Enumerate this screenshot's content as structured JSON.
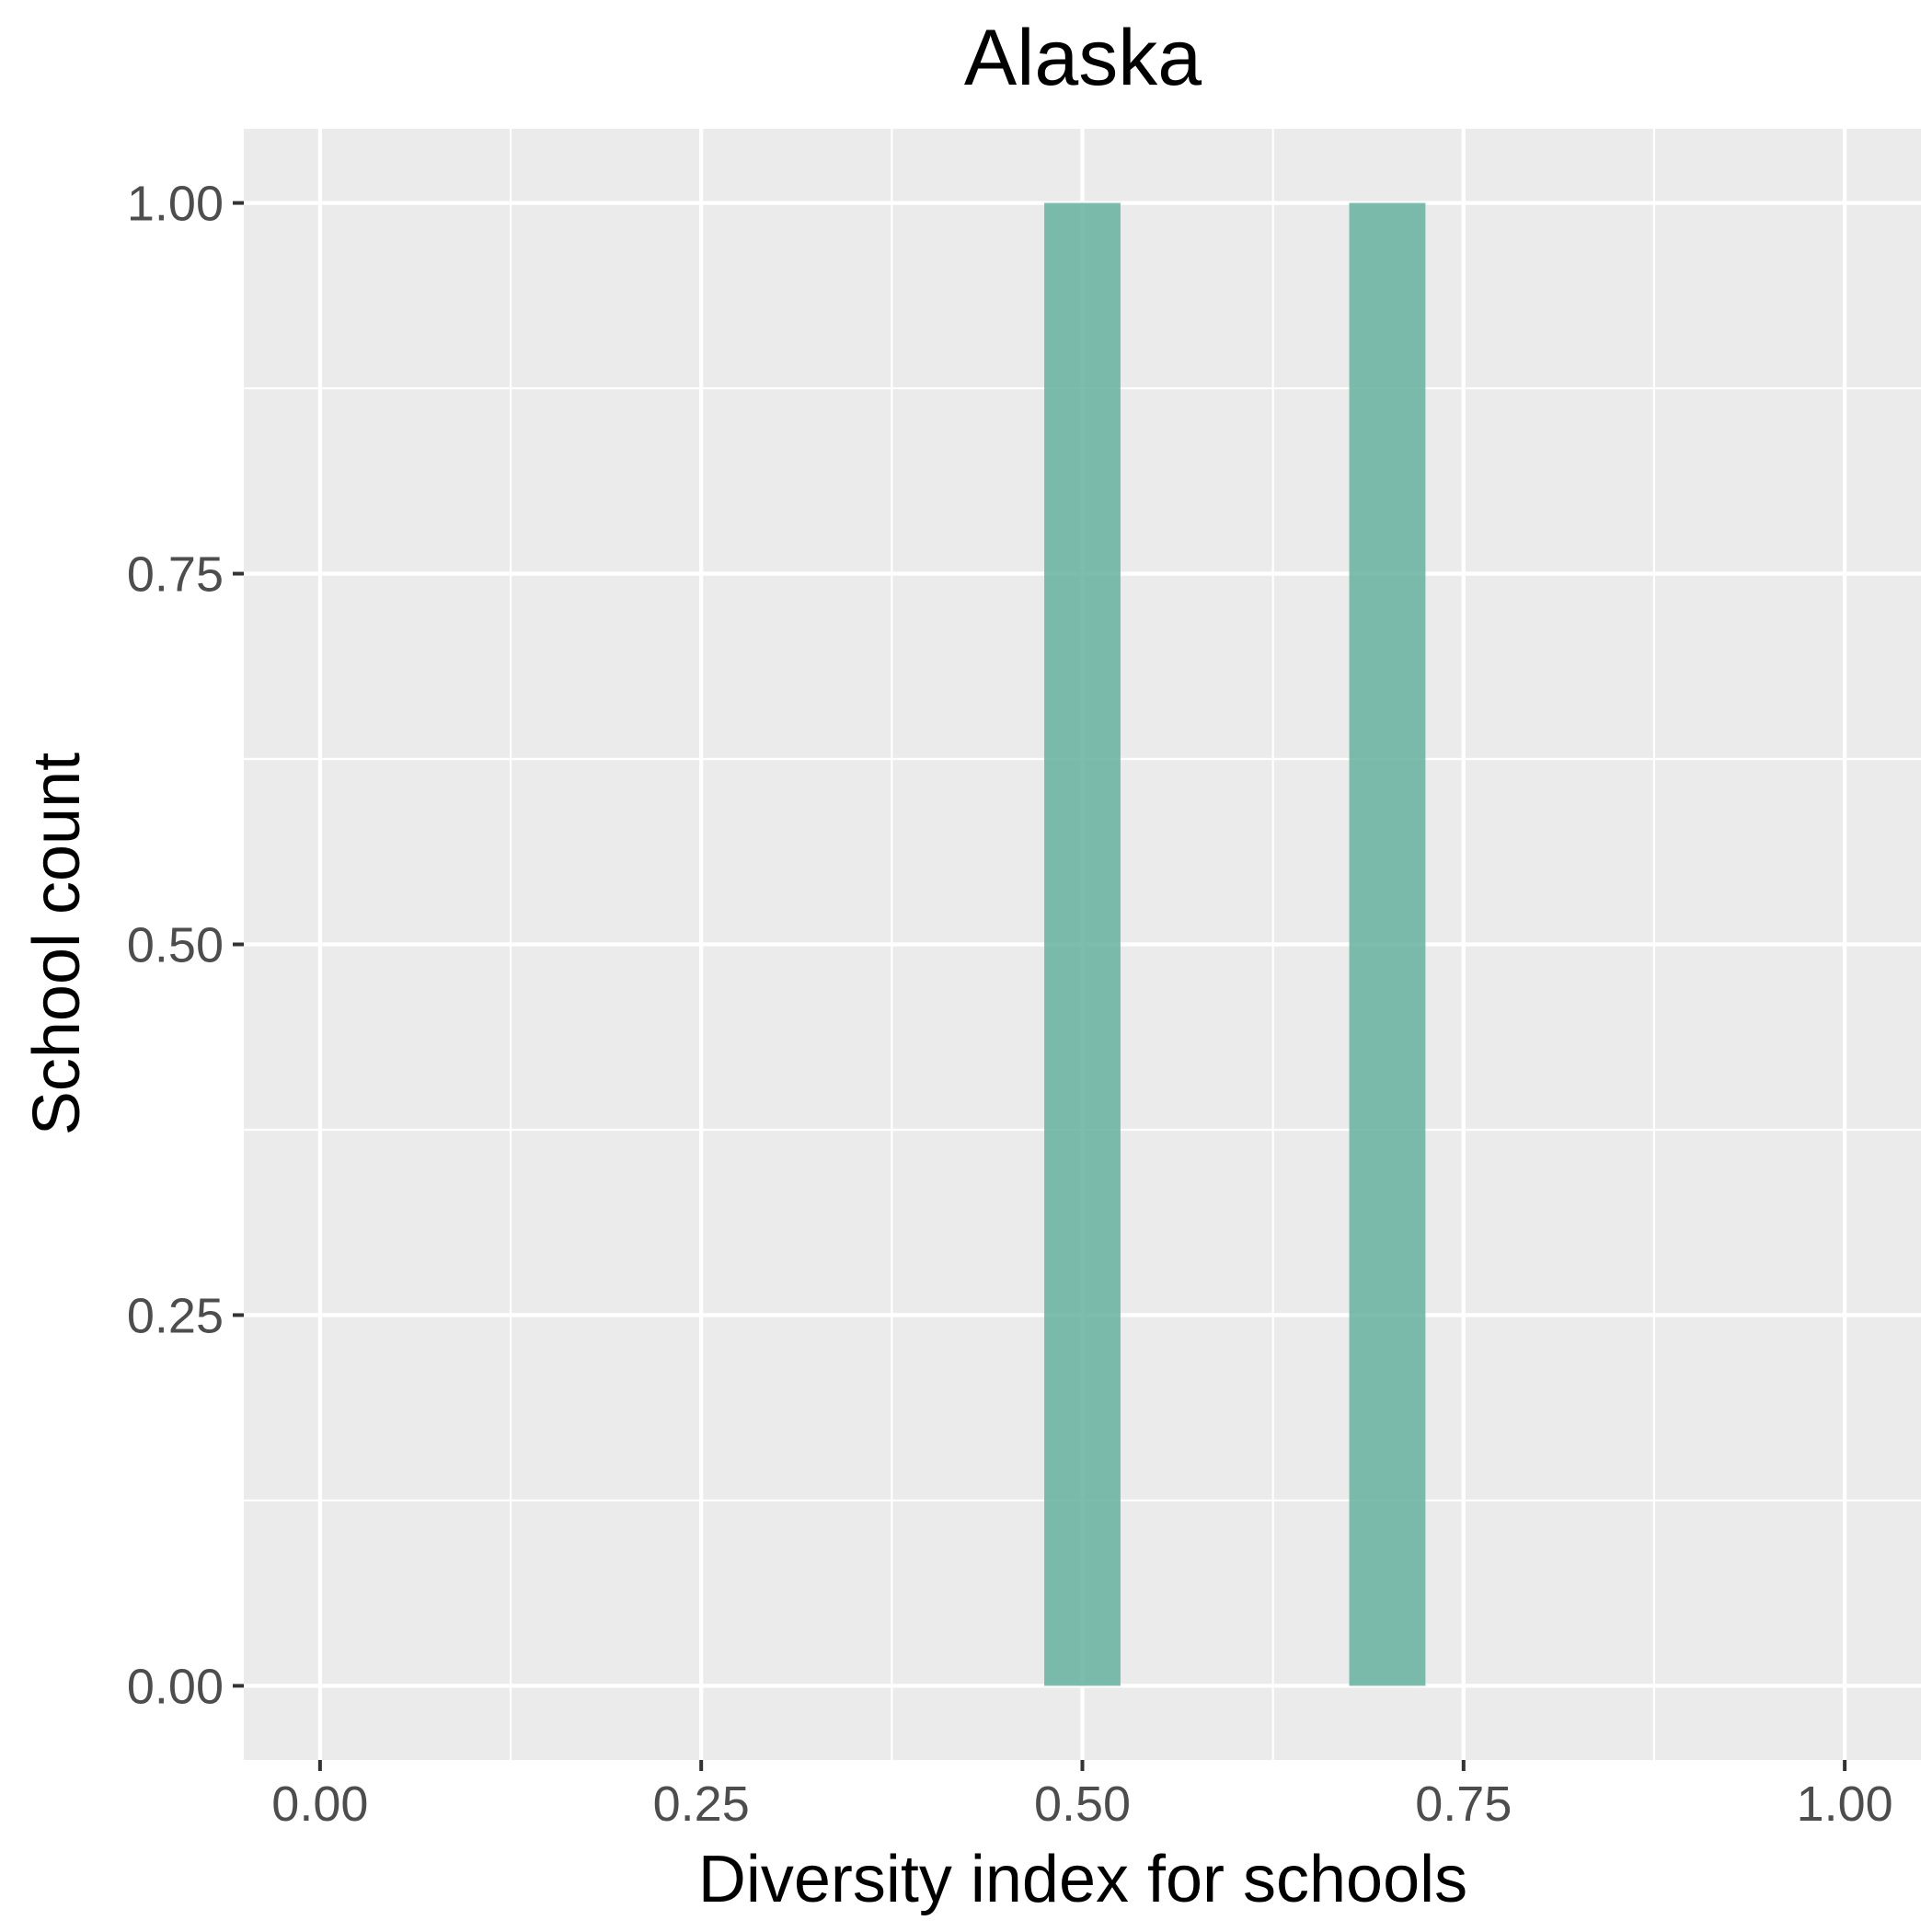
{
  "chart_data": {
    "type": "bar",
    "title": "Alaska",
    "xlabel": "Diversity index for schools",
    "ylabel": "School count",
    "xlim": [
      -0.05,
      1.05
    ],
    "ylim": [
      -0.05,
      1.05
    ],
    "x_ticks": [
      "0.00",
      "0.25",
      "0.50",
      "0.75",
      "1.00"
    ],
    "y_ticks": [
      "0.00",
      "0.25",
      "0.50",
      "0.75",
      "1.00"
    ],
    "bin_width": 0.05,
    "bars": [
      {
        "x": 0.5,
        "value": 1
      },
      {
        "x": 0.7,
        "value": 1
      }
    ],
    "bar_color": "#66b2a0",
    "panel_background": "#ebebeb",
    "grid_color": "#ffffff",
    "grid": true,
    "legend": "none"
  }
}
